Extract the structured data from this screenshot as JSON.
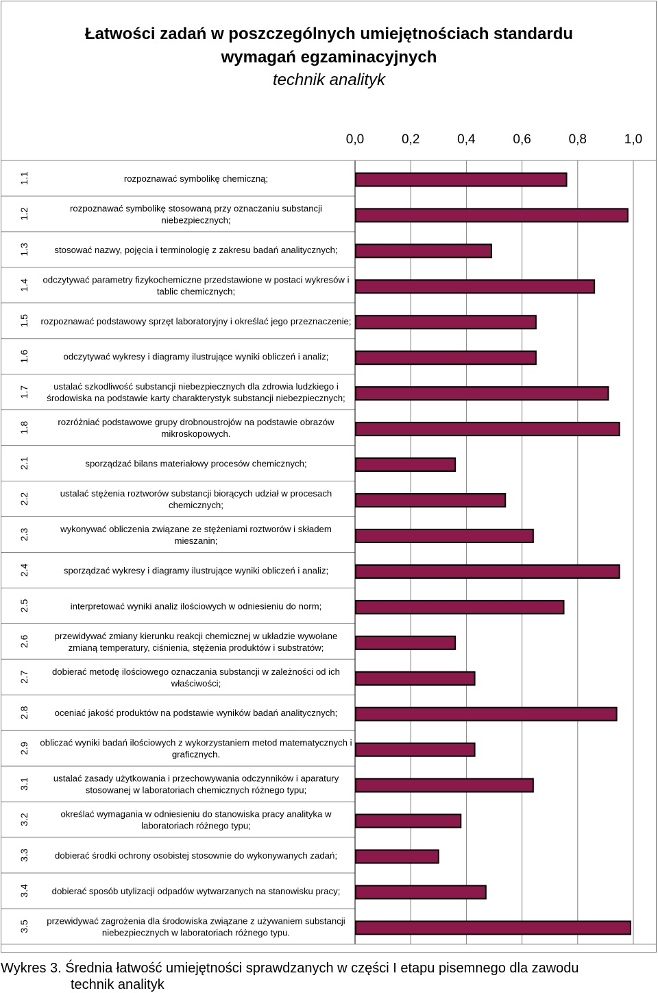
{
  "title": {
    "line1": "Łatwości zadań w poszczególnych umiejętnościach standardu",
    "line2": "wymagań egzaminacyjnych",
    "line3": "technik analityk"
  },
  "caption": {
    "line1": "Wykres 3. Średnia łatwość umiejętności sprawdzanych w części I etapu pisemnego dla zawodu",
    "line2": "technik analityk"
  },
  "colors": {
    "bar_fill": "#8B1A4A",
    "bar_stroke": "#000000",
    "grid": "#808080"
  },
  "chart_data": {
    "type": "bar",
    "orientation": "horizontal",
    "xlim": [
      0,
      1
    ],
    "x_ticks": [
      "0,0",
      "0,2",
      "0,4",
      "0,6",
      "0,8",
      "1,0"
    ],
    "grid": true,
    "categories": [
      {
        "code": "1.1",
        "label": [
          "rozpoznawać symbolikę chemiczną;"
        ]
      },
      {
        "code": "1.2",
        "label": [
          "rozpoznawać symbolikę stosowaną przy oznaczaniu substancji",
          "niebezpiecznych;"
        ]
      },
      {
        "code": "1.3",
        "label": [
          "stosować nazwy, pojęcia i terminologię z zakresu badań analitycznych;"
        ]
      },
      {
        "code": "1.4",
        "label": [
          "odczytywać parametry fizykochemiczne przedstawione w postaci wykresów i",
          "tablic chemicznych;"
        ]
      },
      {
        "code": "1.5",
        "label": [
          "rozpoznawać podstawowy sprzęt laboratoryjny i określać jego przeznaczenie;"
        ]
      },
      {
        "code": "1.6",
        "label": [
          "odczytywać wykresy i diagramy ilustrujące wyniki obliczeń i analiz;"
        ]
      },
      {
        "code": "1.7",
        "label": [
          "ustalać szkodliwość substancji niebezpiecznych dla zdrowia ludzkiego i",
          "środowiska na podstawie karty charakterystyk substancji niebezpiecznych;"
        ]
      },
      {
        "code": "1.8",
        "label": [
          "rozróżniać podstawowe grupy drobnoustrojów na podstawie obrazów",
          "mikroskopowych."
        ]
      },
      {
        "code": "2.1",
        "label": [
          "sporządzać bilans materiałowy procesów chemicznych;"
        ]
      },
      {
        "code": "2.2",
        "label": [
          "ustalać stężenia roztworów substancji biorących udział w procesach",
          "chemicznych;"
        ]
      },
      {
        "code": "2.3",
        "label": [
          "wykonywać obliczenia związane ze stężeniami roztworów i składem",
          "mieszanin;"
        ]
      },
      {
        "code": "2.4",
        "label": [
          "sporządzać wykresy i diagramy ilustrujące wyniki obliczeń i analiz;"
        ]
      },
      {
        "code": "2.5",
        "label": [
          "interpretować wyniki analiz ilościowych w odniesieniu do norm;"
        ]
      },
      {
        "code": "2.6",
        "label": [
          "przewidywać zmiany kierunku reakcji chemicznej w układzie wywołane",
          "zmianą temperatury, ciśnienia, stężenia produktów i substratów;"
        ]
      },
      {
        "code": "2.7",
        "label": [
          "dobierać metodę ilościowego oznaczania substancji w zależności od ich",
          "właściwości;"
        ]
      },
      {
        "code": "2.8",
        "label": [
          "oceniać jakość produktów na podstawie wyników badań analitycznych;"
        ]
      },
      {
        "code": "2.9",
        "label": [
          "obliczać wyniki badań ilościowych z wykorzystaniem metod matematycznych i",
          "graficznych."
        ]
      },
      {
        "code": "3.1",
        "label": [
          "ustalać zasady użytkowania i przechowywania odczynników i aparatury",
          "stosowanej w laboratoriach chemicznych różnego typu;"
        ]
      },
      {
        "code": "3.2",
        "label": [
          "określać wymagania w odniesieniu do stanowiska pracy  analityka w",
          "laboratoriach różnego typu;"
        ]
      },
      {
        "code": "3.3",
        "label": [
          "dobierać środki ochrony osobistej stosownie do wykonywanych zadań;"
        ]
      },
      {
        "code": "3.4",
        "label": [
          "dobierać sposób utylizacji odpadów wytwarzanych na  stanowisku pracy;"
        ]
      },
      {
        "code": "3.5",
        "label": [
          "przewidywać zagrożenia dla środowiska związane z używaniem substancji",
          "niebezpiecznych w laboratoriach różnego typu."
        ]
      }
    ],
    "values": [
      0.76,
      0.98,
      0.49,
      0.86,
      0.65,
      0.65,
      0.91,
      0.95,
      0.36,
      0.54,
      0.64,
      0.95,
      0.75,
      0.36,
      0.43,
      0.94,
      0.43,
      0.64,
      0.38,
      0.3,
      0.47,
      0.99
    ]
  }
}
